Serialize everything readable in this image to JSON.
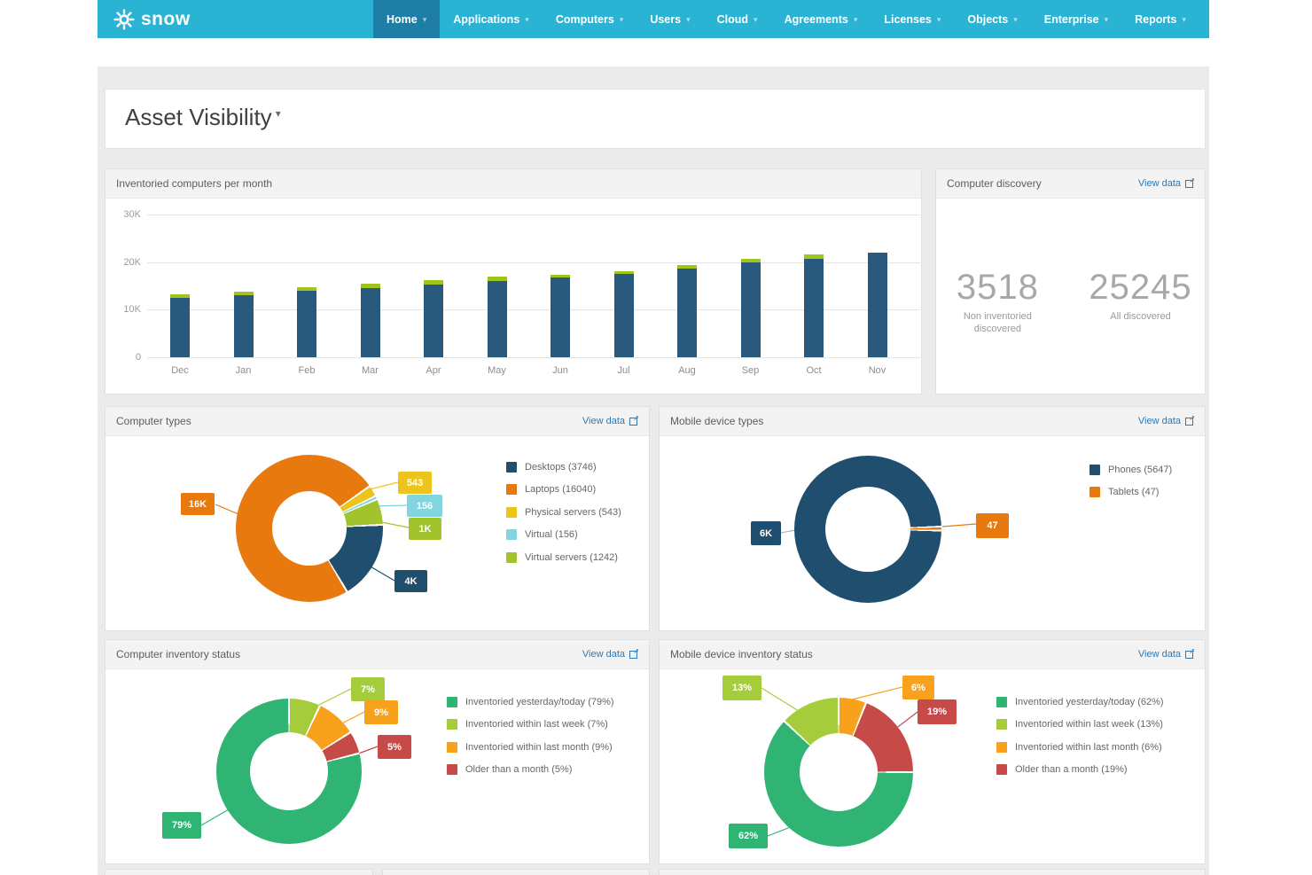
{
  "navbar": {
    "brand": "snow",
    "items": [
      {
        "label": "Home",
        "active": true
      },
      {
        "label": "Applications",
        "active": false
      },
      {
        "label": "Computers",
        "active": false
      },
      {
        "label": "Users",
        "active": false
      },
      {
        "label": "Cloud",
        "active": false
      },
      {
        "label": "Agreements",
        "active": false
      },
      {
        "label": "Licenses",
        "active": false
      },
      {
        "label": "Objects",
        "active": false
      },
      {
        "label": "Enterprise",
        "active": false
      },
      {
        "label": "Reports",
        "active": false
      }
    ]
  },
  "page": {
    "title": "Asset Visibility"
  },
  "panels": {
    "monthly": {
      "title": "Inventoried computers per month"
    },
    "discovery": {
      "title": "Computer discovery",
      "view_data": "View data",
      "stats": [
        {
          "value": "3518",
          "label": "Non inventoried discovered"
        },
        {
          "value": "25245",
          "label": "All discovered"
        }
      ]
    },
    "computer_types": {
      "title": "Computer types",
      "view_data": "View data"
    },
    "mobile_types": {
      "title": "Mobile device types",
      "view_data": "View data"
    },
    "computer_status": {
      "title": "Computer inventory status",
      "view_data": "View data"
    },
    "mobile_status": {
      "title": "Mobile device inventory status",
      "view_data": "View data"
    }
  },
  "chart_data": [
    {
      "id": "monthly",
      "type": "bar",
      "title": "Inventoried computers per month",
      "stacked": true,
      "grid": true,
      "categories": [
        "Dec",
        "Jan",
        "Feb",
        "Mar",
        "Apr",
        "May",
        "Jun",
        "Jul",
        "Aug",
        "Sep",
        "Oct",
        "Nov"
      ],
      "series": [
        {
          "name": "",
          "color": "#29597c",
          "values": [
            12400,
            13100,
            13900,
            14600,
            15300,
            16100,
            16800,
            17500,
            18700,
            19900,
            20700,
            22000
          ]
        },
        {
          "name": "",
          "color": "#a0c41c",
          "values": [
            800,
            700,
            800,
            800,
            900,
            800,
            500,
            500,
            600,
            700,
            1000,
            0
          ]
        }
      ],
      "ylim": [
        0,
        30000
      ],
      "yticks": [
        {
          "value": 0,
          "label": "0"
        },
        {
          "value": 10000,
          "label": "10K"
        },
        {
          "value": 20000,
          "label": "20K"
        },
        {
          "value": 30000,
          "label": "30K"
        }
      ],
      "xlabel": "",
      "ylabel": ""
    },
    {
      "id": "computer_types",
      "type": "donut",
      "title": "Computer types",
      "start_angle": 55,
      "draw_order": [
        2,
        3,
        4,
        0,
        1
      ],
      "segments": [
        {
          "label": "Desktops",
          "value": 3746,
          "color": "#1f4e6e",
          "callout": "4K",
          "legend": "Desktops (3746)"
        },
        {
          "label": "Laptops",
          "value": 16040,
          "color": "#e8790e",
          "callout": "16K",
          "legend": "Laptops (16040)"
        },
        {
          "label": "Physical servers",
          "value": 543,
          "color": "#edc41b",
          "callout": "543",
          "legend": "Physical servers (543)"
        },
        {
          "label": "Virtual",
          "value": 156,
          "color": "#82d4df",
          "callout": "156",
          "legend": "Virtual (156)"
        },
        {
          "label": "Virtual servers",
          "value": 1242,
          "color": "#a2c32d",
          "callout": "1K",
          "legend": "Virtual servers (1242)"
        }
      ]
    },
    {
      "id": "mobile_types",
      "type": "donut",
      "title": "Mobile device types",
      "start_angle": 88,
      "draw_order": [
        1,
        0
      ],
      "segments": [
        {
          "label": "Phones",
          "value": 5647,
          "color": "#1f4e6e",
          "callout": "6K",
          "legend": "Phones (5647)"
        },
        {
          "label": "Tablets",
          "value": 47,
          "color": "#e8790e",
          "callout": "47",
          "legend": "Tablets (47)"
        }
      ]
    },
    {
      "id": "computer_status",
      "type": "donut",
      "title": "Computer inventory status",
      "start_angle": 0,
      "draw_order": [
        1,
        2,
        3,
        0
      ],
      "segments": [
        {
          "label": "Inventoried yesterday/today",
          "value": 79,
          "color": "#2fb474",
          "callout": "79%",
          "legend": "Inventoried yesterday/today (79%)"
        },
        {
          "label": "Inventoried within last week",
          "value": 7,
          "color": "#a5cd3b",
          "callout": "7%",
          "legend": "Inventoried within last week (7%)"
        },
        {
          "label": "Inventoried within last month",
          "value": 9,
          "color": "#f7a11d",
          "callout": "9%",
          "legend": "Inventoried within last month (9%)"
        },
        {
          "label": "Older than a month",
          "value": 5,
          "color": "#c64b48",
          "callout": "5%",
          "legend": "Older than a month (5%)"
        }
      ]
    },
    {
      "id": "mobile_status",
      "type": "donut",
      "title": "Mobile device inventory status",
      "start_angle": 0,
      "draw_order": [
        2,
        3,
        0,
        1
      ],
      "segments": [
        {
          "label": "Inventoried yesterday/today",
          "value": 62,
          "color": "#2fb474",
          "callout": "62%",
          "legend": "Inventoried yesterday/today (62%)"
        },
        {
          "label": "Inventoried within last week",
          "value": 13,
          "color": "#a5cd3b",
          "callout": "13%",
          "legend": "Inventoried within last week (13%)"
        },
        {
          "label": "Inventoried within last month",
          "value": 6,
          "color": "#f7a11d",
          "callout": "6%",
          "legend": "Inventoried within last month (6%)"
        },
        {
          "label": "Older than a month",
          "value": 19,
          "color": "#c64b48",
          "callout": "19%",
          "legend": "Older than a month (19%)"
        }
      ]
    }
  ]
}
